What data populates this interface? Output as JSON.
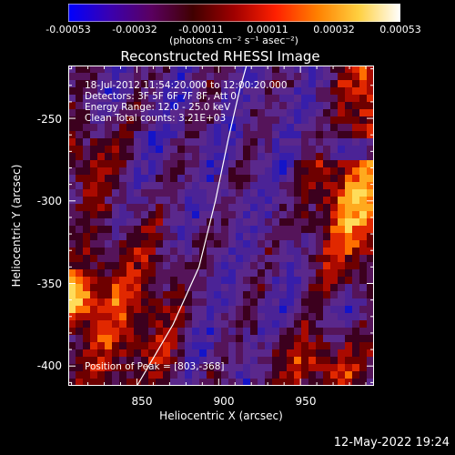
{
  "colorbar": {
    "ticks": [
      "-0.00053",
      "-0.00032",
      "-0.00011",
      "0.00011",
      "0.00032",
      "0.00053"
    ],
    "units": "(photons cm⁻² s⁻¹ asec⁻²)",
    "stops": [
      "#0000ff",
      "#3a00b0",
      "#5a0060",
      "#400000",
      "#a00000",
      "#ff2000",
      "#ff8000",
      "#ffd040",
      "#ffffff"
    ]
  },
  "chart_data": {
    "type": "heatmap",
    "title": "Reconstructed RHESSI Image",
    "xlabel": "Heliocentric X (arcsec)",
    "ylabel": "Heliocentric Y (arcsec)",
    "xlim": [
      808,
      995
    ],
    "ylim": [
      -412,
      -218
    ],
    "xticks": [
      "850",
      "900",
      "950"
    ],
    "yticks": [
      "-250",
      "-300",
      "-350",
      "-400"
    ],
    "annotations": [
      "18-Jul-2012 11:54:20.000 to 12:00:20.000",
      "Detectors: 3F 5F 6F 7F 8F, Att 0",
      "Energy Range: 12.0 - 25.0 keV",
      "Clean     Total counts: 3.21E+03"
    ],
    "peak_label": "Position of Peak = [803,-368]",
    "peak_position": [
      803,
      -368
    ],
    "limb_points": [
      [
        850,
        -412
      ],
      [
        872,
        -375
      ],
      [
        888,
        -340
      ],
      [
        898,
        -300
      ],
      [
        906,
        -262
      ],
      [
        913,
        -232
      ],
      [
        917,
        -218
      ]
    ]
  },
  "timestamp": "12-May-2022 19:24"
}
